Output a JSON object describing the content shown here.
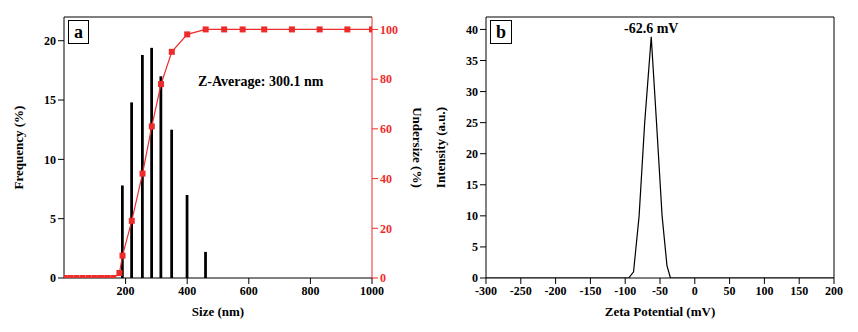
{
  "chart_data": [
    {
      "type": "bar",
      "x_label": "Size (nm)",
      "y_label": "Frequency (%)",
      "y2_label": "Undersize (%)",
      "xlim": [
        0,
        1000
      ],
      "xticks": [
        200,
        400,
        600,
        800,
        1000
      ],
      "ylim": [
        0,
        22
      ],
      "yticks": [
        0,
        5,
        10,
        15,
        20
      ],
      "y2lim": [
        0,
        105
      ],
      "y2ticks": [
        0,
        20,
        40,
        60,
        80,
        100
      ],
      "annotations": [
        "a",
        "Z-Average: 300.1 nm"
      ],
      "series": [
        {
          "type": "bar",
          "color": "#000000",
          "x": [
            190,
            220,
            255,
            285,
            315,
            350,
            400,
            460
          ],
          "values": [
            7.8,
            14.8,
            18.8,
            19.4,
            17.0,
            12.5,
            7.0,
            2.2
          ]
        },
        {
          "type": "line",
          "color": "#ee2b2b",
          "marker": "square",
          "axis": "y2",
          "x": [
            0,
            20,
            40,
            60,
            80,
            100,
            120,
            140,
            160,
            180,
            190,
            220,
            255,
            285,
            315,
            350,
            400,
            460,
            520,
            580,
            650,
            740,
            830,
            920,
            1000
          ],
          "values": [
            0,
            0,
            0,
            0,
            0,
            0,
            0,
            0,
            0,
            2,
            9,
            23,
            42,
            61,
            78,
            91,
            98,
            100,
            100,
            100,
            100,
            100,
            100,
            100,
            100
          ]
        }
      ]
    },
    {
      "type": "line",
      "x_label": "Zeta Potential (mV)",
      "y_label": "Intensity (a.u.)",
      "xlim": [
        -300,
        200
      ],
      "xticks": [
        -300,
        -250,
        -200,
        -150,
        -100,
        -50,
        0,
        50,
        100,
        150,
        200
      ],
      "ylim": [
        0,
        42
      ],
      "yticks": [
        0,
        5,
        10,
        15,
        20,
        25,
        30,
        35,
        40
      ],
      "annotations": [
        "b",
        "-62.6 mV"
      ],
      "series": [
        {
          "type": "line",
          "color": "#000000",
          "x": [
            -300,
            -95,
            -88,
            -80,
            -72,
            -62.6,
            -55,
            -47,
            -40,
            -35,
            200
          ],
          "values": [
            0,
            0,
            1,
            10,
            25,
            38.8,
            25,
            10,
            2,
            0,
            0
          ]
        }
      ]
    }
  ]
}
